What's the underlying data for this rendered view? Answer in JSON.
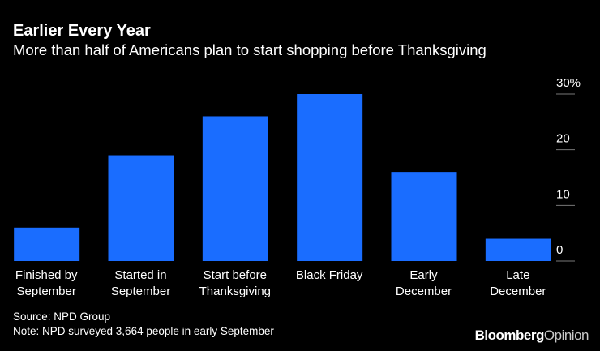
{
  "chart_data": {
    "type": "bar",
    "title": "Earlier Every Year",
    "subtitle": "More than half of Americans plan to start shopping before Thanksgiving",
    "categories": [
      "Finished by\nSeptember",
      "Started in\nSeptember",
      "Start before\nThanksgiving",
      "Black Friday",
      "Early\nDecember",
      "Late\nDecember"
    ],
    "values": [
      6,
      19,
      26,
      30,
      16,
      4
    ],
    "color": "#1a6dff",
    "ylim": [
      0,
      30
    ],
    "yticks": [
      0,
      10,
      20,
      {
        "value": 30,
        "label": "30%"
      }
    ],
    "grid": false,
    "source": "Source: NPD Group",
    "note": "Note: NPD surveyed 3,664 people in early September",
    "logo": [
      "Bloomberg",
      "Opinion"
    ]
  }
}
